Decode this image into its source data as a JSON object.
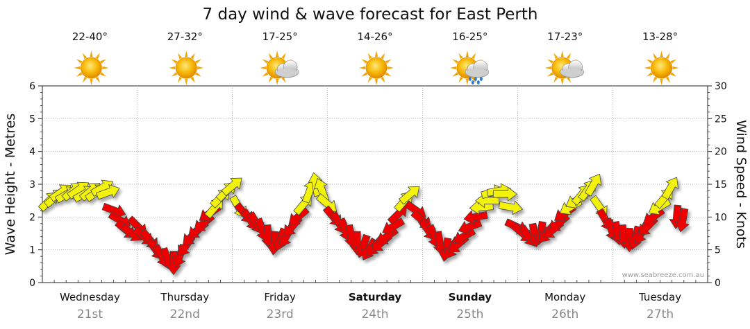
{
  "colors": {
    "low_wind": "#f2f20a",
    "high_wind": "#ee0000",
    "arrow_outline": "#444444",
    "grid": "#999999"
  },
  "chart_data": {
    "type": "scatter",
    "title": "7 day wind & wave forecast for East Perth",
    "ylabel_left": "Wave Height - Metres",
    "ylabel_right": "Wind Speed - Knots",
    "ylim_left": [
      0,
      6
    ],
    "ylim_right": [
      0,
      30
    ],
    "yticks_left": [
      "0",
      "1",
      "2",
      "3",
      "4",
      "5",
      "6"
    ],
    "yticks_right": [
      "0",
      "5",
      "10",
      "15",
      "20",
      "25",
      "30"
    ],
    "grid": true,
    "credit": "www.seabreeze.com.au",
    "days": [
      {
        "name": "Wednesday",
        "date": "21st",
        "bold": false,
        "temp": "22-40°",
        "weather": "sunny-icon"
      },
      {
        "name": "Thursday",
        "date": "22nd",
        "bold": false,
        "temp": "27-32°",
        "weather": "sunny-icon"
      },
      {
        "name": "Friday",
        "date": "23rd",
        "bold": false,
        "temp": "17-25°",
        "weather": "partly-cloudy-icon"
      },
      {
        "name": "Saturday",
        "date": "24th",
        "bold": true,
        "temp": "14-26°",
        "weather": "sunny-icon"
      },
      {
        "name": "Sunday",
        "date": "25th",
        "bold": true,
        "temp": "16-25°",
        "weather": "showers-icon"
      },
      {
        "name": "Monday",
        "date": "26th",
        "bold": false,
        "temp": "17-23°",
        "weather": "partly-cloudy-icon"
      },
      {
        "name": "Tuesday",
        "date": "27th",
        "bold": false,
        "temp": "13-28°",
        "weather": "sunny-icon"
      }
    ],
    "wind_speed_knots": [
      12.5,
      13,
      13.8,
      13.5,
      14,
      14.2,
      13.6,
      14,
      13.8,
      14.5,
      13.8,
      11,
      9.5,
      8,
      7.5,
      8.5,
      7,
      6.5,
      5,
      4,
      3.5,
      3,
      4,
      5.5,
      7,
      8,
      9,
      10.5,
      11.5,
      13,
      14,
      14.8,
      11.5,
      10.5,
      9.5,
      9,
      8,
      7,
      6,
      6.5,
      7,
      8.5,
      10,
      12,
      14,
      15,
      14.2,
      12,
      10,
      9,
      8,
      7,
      6,
      5.5,
      5,
      5.5,
      6,
      7,
      8.5,
      10.5,
      12.5,
      13.5,
      11,
      9.5,
      8,
      7,
      6,
      5,
      5.2,
      5.8,
      7,
      8.5,
      10,
      11.5,
      12.5,
      13.8,
      14,
      13.5,
      11.5,
      8.5,
      7.5,
      7,
      7.2,
      7.5,
      7.5,
      8,
      9,
      10.5,
      11.5,
      12.5,
      13.5,
      14.2,
      15,
      11.5,
      9.5,
      8,
      7.5,
      7,
      6.5,
      6.8,
      7.5,
      8.5,
      10,
      11.5,
      13,
      14.5,
      10,
      9.5
    ],
    "wind_speed_categories": [
      "Wed",
      "Wed",
      "Wed",
      "Wed",
      "Wed",
      "Wed",
      "Wed",
      "Wed",
      "Wed",
      "Wed",
      "Wed",
      "Wed",
      "Wed",
      "Wed",
      "Wed",
      "Wed",
      "Wed",
      "Thu",
      "Thu",
      "Thu",
      "Thu",
      "Thu",
      "Thu",
      "Thu",
      "Thu",
      "Thu",
      "Thu",
      "Thu",
      "Thu",
      "Thu",
      "Thu",
      "Thu",
      "Fri",
      "Fri",
      "Fri",
      "Fri",
      "Fri",
      "Fri",
      "Fri",
      "Fri",
      "Fri",
      "Fri",
      "Fri",
      "Fri",
      "Fri",
      "Fri",
      "Fri",
      "Sat",
      "Sat",
      "Sat",
      "Sat",
      "Sat",
      "Sat",
      "Sat",
      "Sat",
      "Sat",
      "Sat",
      "Sat",
      "Sat",
      "Sat",
      "Sat",
      "Sat",
      "Sat",
      "Sat",
      "Sat",
      "Sat",
      "Sun",
      "Sun",
      "Sun",
      "Sun",
      "Sun",
      "Sun",
      "Sun",
      "Sun",
      "Sun",
      "Sun",
      "Sun",
      "Sun",
      "Sun",
      "Mon",
      "Mon",
      "Mon",
      "Mon",
      "Mon",
      "Mon",
      "Mon",
      "Mon",
      "Mon",
      "Mon",
      "Mon",
      "Mon",
      "Mon",
      "Mon",
      "Tue",
      "Tue",
      "Tue",
      "Tue",
      "Tue",
      "Tue",
      "Tue",
      "Tue",
      "Tue",
      "Tue",
      "Tue",
      "Tue",
      "Tue",
      "Tue",
      "Tue"
    ],
    "wind_direction_deg_to": [
      45,
      50,
      55,
      60,
      50,
      55,
      60,
      50,
      55,
      60,
      70,
      110,
      120,
      130,
      125,
      135,
      130,
      140,
      145,
      150,
      160,
      180,
      200,
      215,
      225,
      230,
      230,
      235,
      40,
      45,
      45,
      50,
      150,
      140,
      145,
      150,
      160,
      175,
      185,
      200,
      210,
      220,
      230,
      40,
      20,
      350,
      340,
      130,
      140,
      150,
      160,
      170,
      180,
      200,
      210,
      220,
      230,
      235,
      240,
      45,
      40,
      50,
      125,
      130,
      145,
      160,
      170,
      190,
      210,
      230,
      240,
      250,
      260,
      265,
      270,
      75,
      80,
      90,
      100,
      115,
      130,
      145,
      170,
      190,
      220,
      230,
      230,
      235,
      240,
      240,
      40,
      35,
      30,
      145,
      150,
      160,
      170,
      175,
      180,
      195,
      210,
      225,
      235,
      240,
      40,
      30,
      185,
      190
    ]
  }
}
